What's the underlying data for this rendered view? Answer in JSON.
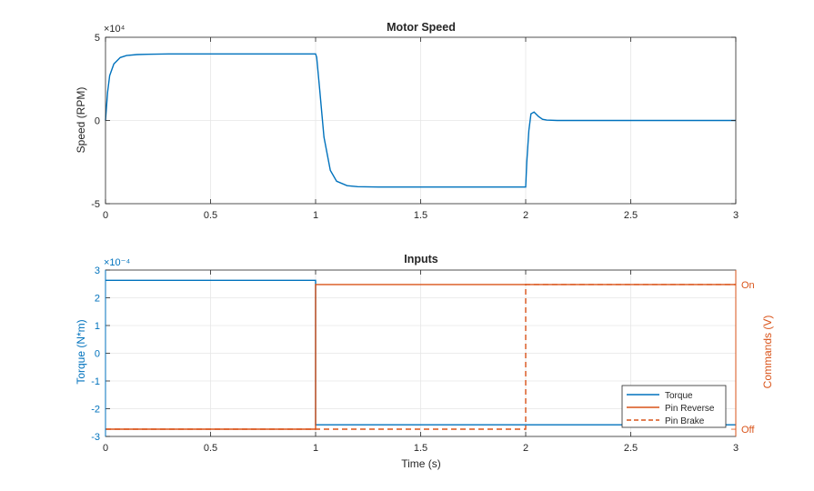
{
  "colors": {
    "blue": "#0072bd",
    "orange": "#d95319",
    "axis": "#262626",
    "grid": "#e6e6e6"
  },
  "chart_data": [
    {
      "type": "line",
      "title": "Motor Speed",
      "xlabel": "",
      "ylabel": "Speed (RPM)",
      "exponent_label": "×10⁴",
      "xlim": [
        0,
        3
      ],
      "ylim": [
        -50000,
        50000
      ],
      "x_ticks": [
        "0",
        "0.5",
        "1",
        "1.5",
        "2",
        "2.5",
        "3"
      ],
      "y_ticks": [
        "5",
        "0",
        "-5"
      ],
      "grid": true,
      "series": [
        {
          "color": "#0072bd",
          "x": [
            0,
            0.01,
            0.02,
            0.04,
            0.07,
            0.1,
            0.15,
            0.2,
            0.3,
            1.0,
            1.005,
            1.02,
            1.04,
            1.07,
            1.1,
            1.15,
            1.2,
            1.3,
            2.0,
            2.005,
            2.015,
            2.025,
            2.04,
            2.06,
            2.08,
            2.1,
            2.15,
            2.2,
            3.0
          ],
          "y": [
            0,
            17000,
            27000,
            34000,
            37800,
            39000,
            39600,
            39800,
            40000,
            40000,
            38000,
            18000,
            -10000,
            -30000,
            -36500,
            -39200,
            -39800,
            -40000,
            -40000,
            -25000,
            -6000,
            4000,
            5000,
            2500,
            700,
            200,
            0,
            0,
            0
          ]
        }
      ]
    },
    {
      "type": "line",
      "title": "Inputs",
      "xlabel": "Time (s)",
      "ylabel": "Torque (N*m)",
      "exponent_label": "×10⁻⁴",
      "ylabel_right": "Commands (V)",
      "xlim": [
        0,
        3
      ],
      "ylim": [
        -0.0003,
        0.0003
      ],
      "x_ticks": [
        "0",
        "0.5",
        "1",
        "1.5",
        "2",
        "2.5",
        "3"
      ],
      "y_ticks": [
        "3",
        "2",
        "1",
        "0",
        "-1",
        "-2",
        "-3"
      ],
      "y_right_ticks": [
        "On",
        "Off"
      ],
      "ylim_right": [
        -0.05,
        1.1
      ],
      "grid": true,
      "legend_position": "bottom-right",
      "series": [
        {
          "name": "Torque",
          "axis": "left",
          "color": "#0072bd",
          "style": "solid",
          "x": [
            0,
            1,
            1,
            3
          ],
          "y": [
            0.000263,
            0.000263,
            -0.000258,
            -0.000258
          ]
        },
        {
          "name": "Pin Reverse",
          "axis": "right",
          "color": "#d95319",
          "style": "solid",
          "x": [
            0,
            1,
            1,
            3
          ],
          "y": [
            0,
            0,
            1,
            1
          ]
        },
        {
          "name": "Pin Brake",
          "axis": "right",
          "color": "#d95319",
          "style": "dashed",
          "x": [
            0,
            2,
            2,
            3
          ],
          "y": [
            0,
            0,
            1,
            1
          ]
        }
      ]
    }
  ]
}
